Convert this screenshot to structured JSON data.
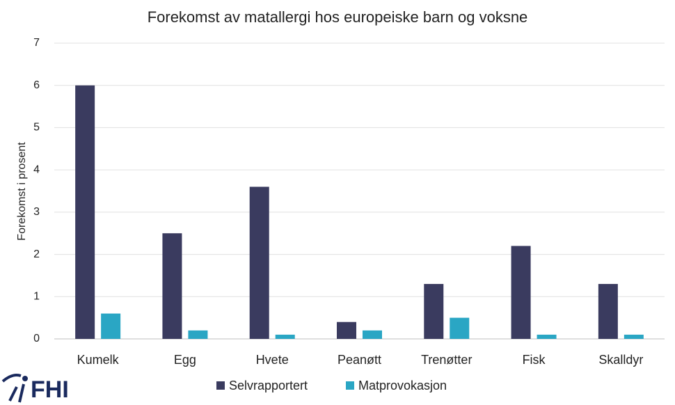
{
  "chart_data": {
    "type": "bar",
    "title": "Forekomst av matallergi hos europeiske barn og voksne",
    "y_label": "Forekomst i prosent",
    "categories": [
      "Kumelk",
      "Egg",
      "Hvete",
      "Peanøtt",
      "Trenøtter",
      "Fisk",
      "Skalldyr"
    ],
    "series": [
      {
        "name": "Selvrapportert",
        "color": "#3a3b5f",
        "values": [
          6,
          2.5,
          3.6,
          0.4,
          1.3,
          2.2,
          1.3
        ]
      },
      {
        "name": "Matprovokasjon",
        "color": "#2aa6c4",
        "values": [
          0.6,
          0.2,
          0.1,
          0.2,
          0.5,
          0.1,
          0.1
        ]
      }
    ],
    "ylim": [
      0,
      7
    ],
    "yticks": [
      0,
      1,
      2,
      3,
      4,
      5,
      6,
      7
    ],
    "grid": true,
    "legend": "bottom"
  },
  "logo": {
    "text": "FHI"
  }
}
